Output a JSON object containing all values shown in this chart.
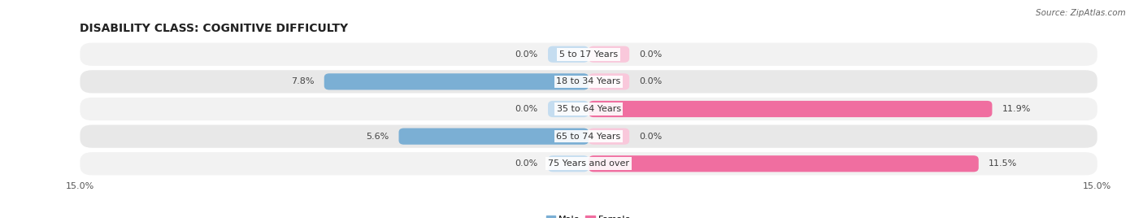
{
  "title": "DISABILITY CLASS: COGNITIVE DIFFICULTY",
  "source": "Source: ZipAtlas.com",
  "categories": [
    "5 to 17 Years",
    "18 to 34 Years",
    "35 to 64 Years",
    "65 to 74 Years",
    "75 Years and over"
  ],
  "male_values": [
    0.0,
    7.8,
    0.0,
    5.6,
    0.0
  ],
  "female_values": [
    0.0,
    0.0,
    11.9,
    0.0,
    11.5
  ],
  "max_val": 15.0,
  "stub_val": 1.2,
  "male_color_strong": "#7bafd4",
  "male_color_light": "#c5ddf0",
  "female_color_strong": "#f06ea0",
  "female_color_light": "#f9c8db",
  "row_bg_colors": [
    "#f2f2f2",
    "#e8e8e8"
  ],
  "title_fontsize": 10,
  "label_fontsize": 8,
  "tick_fontsize": 8,
  "legend_fontsize": 8,
  "bar_height": 0.6,
  "row_rounding": 0.35
}
